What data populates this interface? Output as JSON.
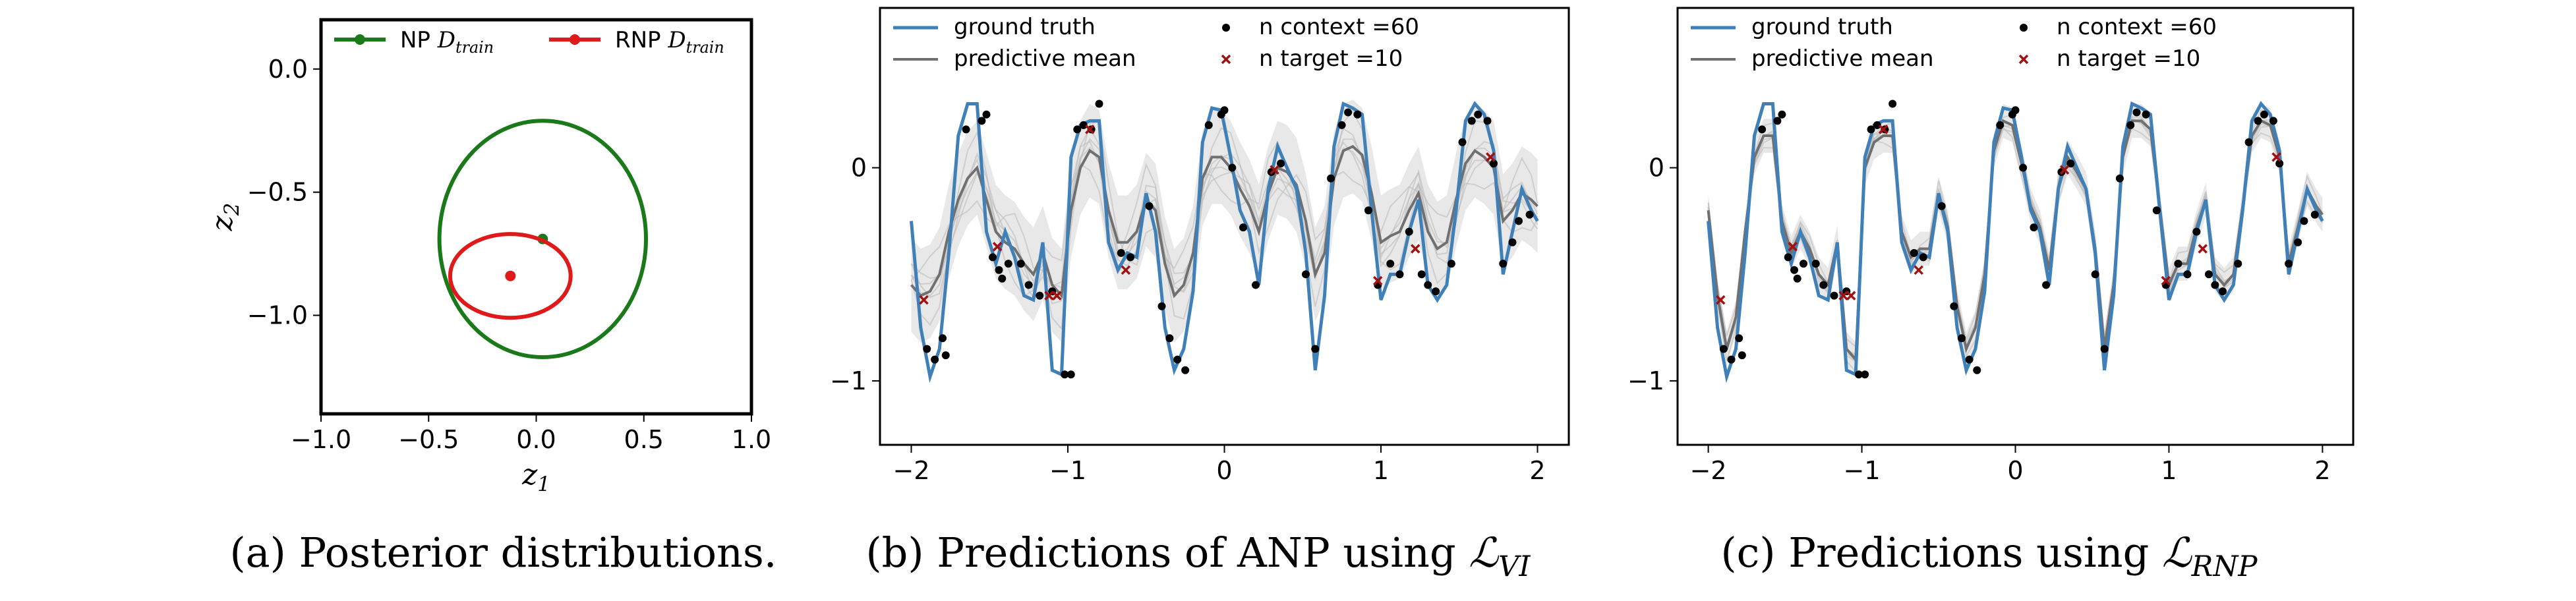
{
  "chart_data": [
    {
      "type": "scatter",
      "panel": "a",
      "caption": "(a) Posterior distributions.",
      "xlabel": "z",
      "xlabel_sub": "1",
      "ylabel": "z",
      "ylabel_sub": "2",
      "xlim": [
        -1.0,
        1.0
      ],
      "ylim": [
        -1.4,
        0.2
      ],
      "xticks": [
        "−1.0",
        "−0.5",
        "0.0",
        "0.5",
        "1.0"
      ],
      "xtick_values": [
        -1.0,
        -0.5,
        0.0,
        0.5,
        1.0
      ],
      "yticks": [
        "0.0",
        "−0.5",
        "−1.0"
      ],
      "ytick_values": [
        0.0,
        -0.5,
        -1.0
      ],
      "legend_position": "top",
      "series": [
        {
          "name": "NP",
          "name_sub": "D",
          "name_subsub": "train",
          "color": "#1a7a1a",
          "center": [
            0.03,
            -0.69
          ],
          "radius": [
            0.48,
            0.48
          ]
        },
        {
          "name": "RNP",
          "name_sub": "D",
          "name_subsub": "train",
          "color": "#e0191b",
          "center": [
            -0.12,
            -0.84
          ],
          "radius": [
            0.28,
            0.17
          ]
        }
      ]
    },
    {
      "type": "line",
      "panel": "b",
      "caption_prefix": "(b) Predictions of ANP using ",
      "caption_math": "ℒ",
      "caption_sub": "VI",
      "xlim": [
        -2.2,
        2.2
      ],
      "ylim": [
        -1.3,
        0.75
      ],
      "xticks": [
        "−2",
        "−1",
        "0",
        "1",
        "2"
      ],
      "xtick_values": [
        -2,
        -1,
        0,
        1,
        2
      ],
      "yticks": [
        "0",
        "−1"
      ],
      "ytick_values": [
        0,
        -1
      ],
      "legend": [
        "ground truth",
        "predictive mean",
        "n context =60",
        "n target =10"
      ],
      "colors": {
        "truth": "#3f80b8",
        "mean": "#707070",
        "context": "#000000",
        "target": "#a31010"
      },
      "truth_x": [
        -2.0,
        -1.94,
        -1.88,
        -1.82,
        -1.76,
        -1.7,
        -1.64,
        -1.58,
        -1.52,
        -1.46,
        -1.4,
        -1.34,
        -1.28,
        -1.22,
        -1.16,
        -1.1,
        -1.04,
        -0.98,
        -0.92,
        -0.86,
        -0.8,
        -0.74,
        -0.68,
        -0.62,
        -0.56,
        -0.5,
        -0.44,
        -0.38,
        -0.32,
        -0.26,
        -0.2,
        -0.14,
        -0.08,
        -0.02,
        0.04,
        0.1,
        0.16,
        0.22,
        0.28,
        0.34,
        0.4,
        0.46,
        0.52,
        0.58,
        0.64,
        0.7,
        0.76,
        0.82,
        0.88,
        0.94,
        1.0,
        1.06,
        1.12,
        1.18,
        1.24,
        1.3,
        1.36,
        1.42,
        1.48,
        1.54,
        1.6,
        1.66,
        1.72,
        1.78,
        1.84,
        1.9,
        1.96,
        2.0
      ],
      "truth_y": [
        -0.25,
        -0.75,
        -0.98,
        -0.85,
        -0.4,
        0.15,
        0.3,
        0.3,
        -0.3,
        -0.45,
        -0.3,
        -0.42,
        -0.6,
        -0.62,
        -0.35,
        -0.95,
        -0.97,
        0.05,
        0.2,
        0.22,
        0.22,
        -0.35,
        -0.48,
        -0.4,
        -0.42,
        -0.12,
        -0.3,
        -0.75,
        -0.95,
        -0.85,
        -0.58,
        0.12,
        0.28,
        0.27,
        0.05,
        -0.2,
        -0.3,
        -0.55,
        -0.1,
        0.1,
        0.0,
        -0.1,
        -0.4,
        -0.95,
        -0.6,
        0.1,
        0.3,
        0.28,
        0.25,
        -0.2,
        -0.62,
        -0.5,
        -0.5,
        -0.3,
        -0.15,
        -0.55,
        -0.62,
        -0.55,
        -0.2,
        0.22,
        0.3,
        0.25,
        0.08,
        -0.5,
        -0.3,
        -0.1,
        -0.2,
        -0.25
      ],
      "mean_y": [
        -0.55,
        -0.6,
        -0.58,
        -0.5,
        -0.3,
        -0.15,
        -0.05,
        0.0,
        -0.15,
        -0.3,
        -0.35,
        -0.38,
        -0.45,
        -0.5,
        -0.4,
        -0.55,
        -0.6,
        -0.2,
        0.0,
        0.08,
        0.05,
        -0.2,
        -0.35,
        -0.35,
        -0.3,
        -0.15,
        -0.2,
        -0.45,
        -0.6,
        -0.55,
        -0.4,
        -0.05,
        0.05,
        0.05,
        0.0,
        -0.1,
        -0.18,
        -0.3,
        -0.12,
        0.0,
        -0.02,
        -0.08,
        -0.25,
        -0.5,
        -0.4,
        -0.05,
        0.08,
        0.1,
        0.06,
        -0.12,
        -0.35,
        -0.32,
        -0.3,
        -0.2,
        -0.12,
        -0.3,
        -0.38,
        -0.35,
        -0.15,
        0.02,
        0.08,
        0.05,
        0.0,
        -0.25,
        -0.2,
        -0.12,
        -0.15,
        -0.18
      ],
      "context": [
        [
          -1.9,
          -0.85
        ],
        [
          -1.85,
          -0.9
        ],
        [
          -1.8,
          -0.8
        ],
        [
          -1.78,
          -0.88
        ],
        [
          -1.65,
          0.18
        ],
        [
          -1.55,
          0.22
        ],
        [
          -1.48,
          -0.42
        ],
        [
          -1.42,
          -0.52
        ],
        [
          -1.38,
          -0.45
        ],
        [
          -1.3,
          -0.45
        ],
        [
          -1.25,
          -0.55
        ],
        [
          -1.18,
          -0.6
        ],
        [
          -1.02,
          -0.97
        ],
        [
          -0.98,
          -0.97
        ],
        [
          -0.9,
          0.2
        ],
        [
          -0.8,
          0.3
        ],
        [
          -0.66,
          -0.4
        ],
        [
          -0.6,
          -0.42
        ],
        [
          -0.48,
          -0.18
        ],
        [
          -0.4,
          -0.65
        ],
        [
          -0.35,
          -0.8
        ],
        [
          -0.25,
          -0.95
        ],
        [
          -0.1,
          0.2
        ],
        [
          -0.02,
          0.25
        ],
        [
          0.05,
          0.0
        ],
        [
          0.12,
          -0.28
        ],
        [
          0.2,
          -0.55
        ],
        [
          0.36,
          0.02
        ],
        [
          0.52,
          -0.5
        ],
        [
          0.58,
          -0.85
        ],
        [
          0.68,
          -0.05
        ],
        [
          0.75,
          0.2
        ],
        [
          0.85,
          0.25
        ],
        [
          0.92,
          -0.2
        ],
        [
          0.98,
          -0.55
        ],
        [
          1.06,
          -0.45
        ],
        [
          1.12,
          -0.5
        ],
        [
          1.18,
          -0.3
        ],
        [
          1.26,
          -0.5
        ],
        [
          1.35,
          -0.58
        ],
        [
          1.45,
          -0.45
        ],
        [
          1.52,
          0.12
        ],
        [
          1.58,
          0.22
        ],
        [
          1.68,
          0.22
        ],
        [
          1.72,
          0.02
        ],
        [
          1.78,
          -0.45
        ],
        [
          1.84,
          -0.35
        ],
        [
          1.88,
          -0.25
        ],
        [
          1.95,
          -0.22
        ],
        [
          -1.1,
          -0.58
        ],
        [
          0.3,
          -0.02
        ],
        [
          -0.85,
          0.18
        ],
        [
          1.62,
          0.25
        ],
        [
          -1.52,
          0.25
        ],
        [
          0.0,
          0.27
        ],
        [
          -0.94,
          0.18
        ],
        [
          -1.44,
          -0.48
        ],
        [
          0.79,
          0.26
        ],
        [
          -0.3,
          -0.9
        ],
        [
          1.3,
          -0.55
        ]
      ],
      "targets": [
        [
          -1.92,
          -0.62
        ],
        [
          -1.45,
          -0.37
        ],
        [
          -1.12,
          -0.6
        ],
        [
          -0.86,
          0.18
        ],
        [
          -0.63,
          -0.48
        ],
        [
          0.32,
          -0.01
        ],
        [
          0.98,
          -0.53
        ],
        [
          1.22,
          -0.38
        ],
        [
          1.7,
          0.05
        ],
        [
          -1.07,
          -0.6
        ]
      ]
    },
    {
      "type": "line",
      "panel": "c",
      "caption_prefix": "(c) Predictions using ",
      "caption_math": "ℒ",
      "caption_sub": "RNP",
      "xlim": [
        -2.2,
        2.2
      ],
      "ylim": [
        -1.3,
        0.75
      ],
      "xticks": [
        "−2",
        "−1",
        "0",
        "1",
        "2"
      ],
      "xtick_values": [
        -2,
        -1,
        0,
        1,
        2
      ],
      "yticks": [
        "0",
        "−1"
      ],
      "ytick_values": [
        0,
        -1
      ],
      "legend": [
        "ground truth",
        "predictive mean",
        "n context =60",
        "n target =10"
      ],
      "colors": {
        "truth": "#3f80b8",
        "mean": "#707070",
        "context": "#000000",
        "target": "#a31010"
      },
      "mean_y": [
        -0.2,
        -0.6,
        -0.85,
        -0.7,
        -0.3,
        0.05,
        0.15,
        0.15,
        -0.25,
        -0.4,
        -0.3,
        -0.38,
        -0.5,
        -0.55,
        -0.35,
        -0.85,
        -0.9,
        0.0,
        0.12,
        0.15,
        0.15,
        -0.3,
        -0.42,
        -0.38,
        -0.38,
        -0.12,
        -0.28,
        -0.65,
        -0.85,
        -0.75,
        -0.5,
        0.08,
        0.22,
        0.2,
        0.02,
        -0.18,
        -0.28,
        -0.48,
        -0.1,
        0.05,
        -0.02,
        -0.1,
        -0.38,
        -0.85,
        -0.55,
        0.05,
        0.22,
        0.22,
        0.18,
        -0.18,
        -0.55,
        -0.45,
        -0.45,
        -0.28,
        -0.15,
        -0.5,
        -0.55,
        -0.5,
        -0.18,
        0.15,
        0.22,
        0.2,
        0.05,
        -0.45,
        -0.28,
        -0.1,
        -0.18,
        -0.22
      ]
    }
  ]
}
